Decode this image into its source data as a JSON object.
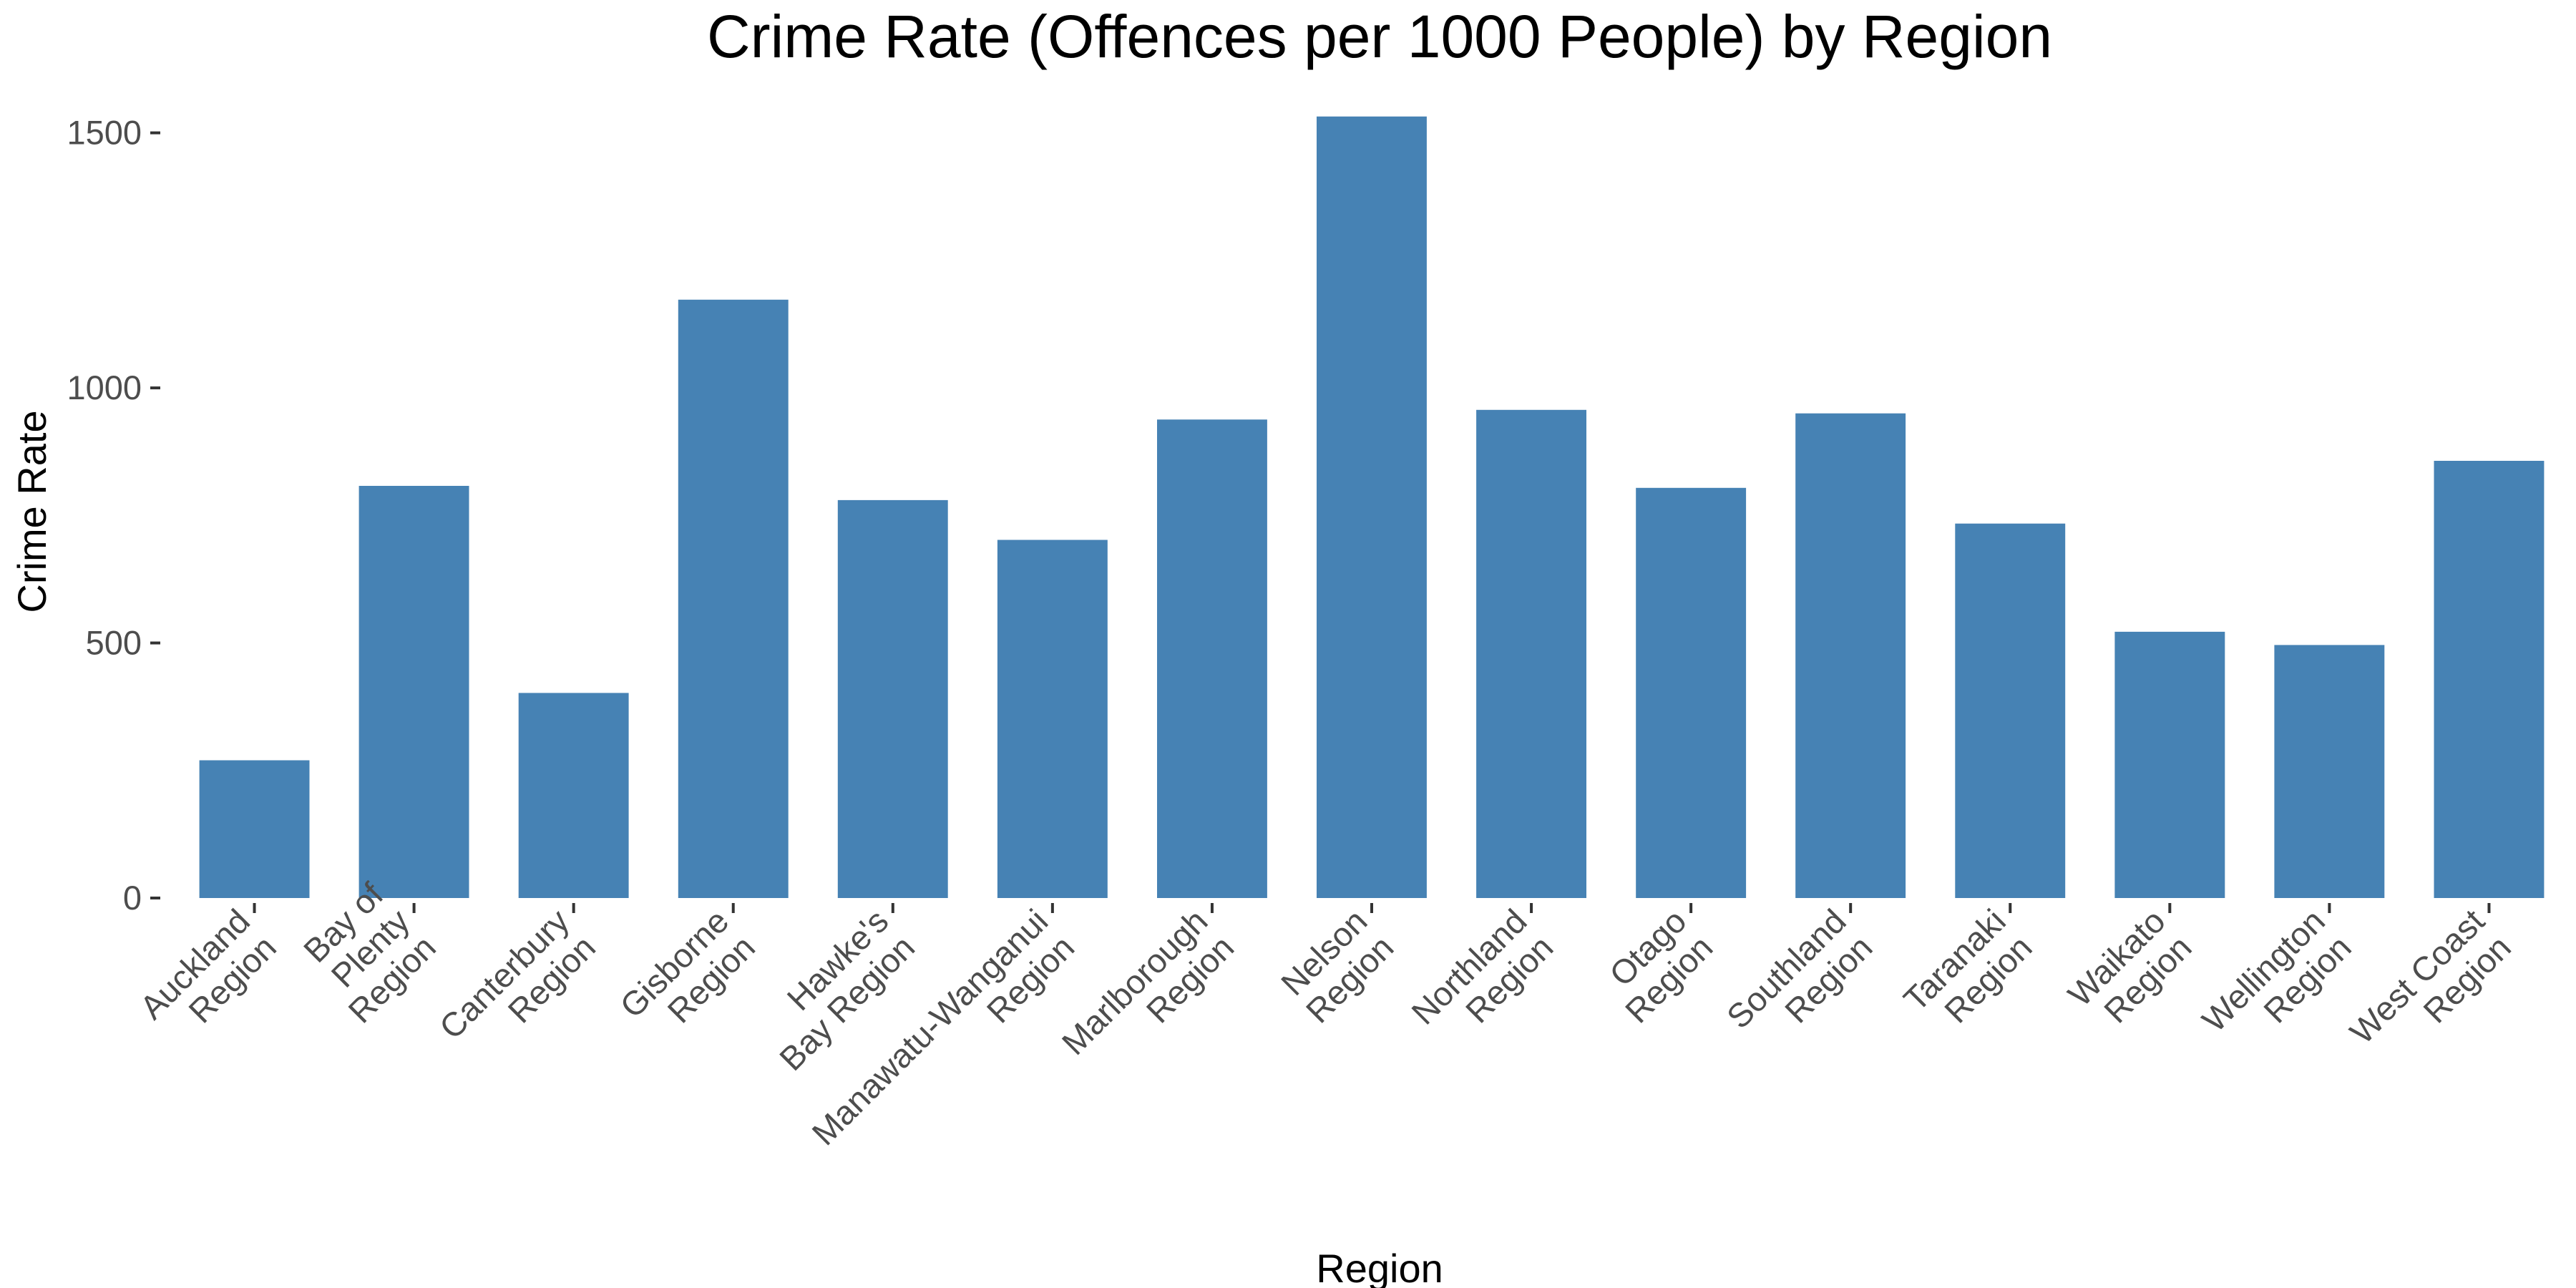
{
  "chart_data": {
    "type": "bar",
    "title": "Crime Rate (Offences per 1000 People) by Region",
    "xlabel": "Region",
    "ylabel": "Crime Rate",
    "categories": [
      [
        "Auckland",
        "Region"
      ],
      [
        "Bay of",
        "Plenty",
        "Region"
      ],
      [
        "Canterbury",
        "Region"
      ],
      [
        "Gisborne",
        "Region"
      ],
      [
        "Hawke's",
        "Bay Region"
      ],
      [
        "Manawatu-Wanganui",
        "Region"
      ],
      [
        "Marlborough",
        "Region"
      ],
      [
        "Nelson",
        "Region"
      ],
      [
        "Northland",
        "Region"
      ],
      [
        "Otago",
        "Region"
      ],
      [
        "Southland",
        "Region"
      ],
      [
        "Taranaki",
        "Region"
      ],
      [
        "Waikato",
        "Region"
      ],
      [
        "Wellington",
        "Region"
      ],
      [
        "West Coast",
        "Region"
      ]
    ],
    "values": [
      270,
      808,
      402,
      1173,
      780,
      702,
      938,
      1532,
      957,
      804,
      950,
      734,
      522,
      496,
      857
    ],
    "ylim": [
      0,
      1550
    ],
    "yticks": [
      0,
      500,
      1000,
      1500
    ],
    "bar_color": "#4682b4",
    "grid": false,
    "legend": "none"
  }
}
